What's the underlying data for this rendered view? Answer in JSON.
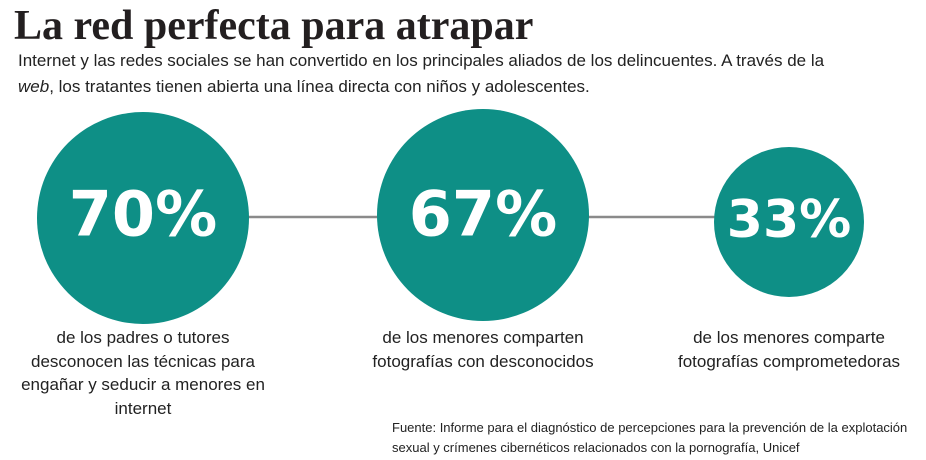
{
  "header": {
    "title": "La red perfecta para atrapar",
    "subtitle_parts": [
      "Internet y las redes sociales se han convertido en los principales aliados de los delincuentes. A través de la ",
      "web",
      ", los tratantes tienen abierta una línea directa con niños y adolescentes."
    ]
  },
  "items": [
    {
      "figure": "70%",
      "text": "de los padres o tutores desconocen las técnicas para engañar y seducir a menores en internet"
    },
    {
      "figure": "67%",
      "text": "de los menores comparten fotografías con desconocidos"
    },
    {
      "figure": "33%",
      "text": "de los menores comparte fotografías comprometedoras"
    }
  ],
  "source": "Fuente: Informe para el diagnóstico de percepciones para la prevención de la explotación sexual y crímenes cibernéticos relacionados con la pornografía, Unicef"
}
